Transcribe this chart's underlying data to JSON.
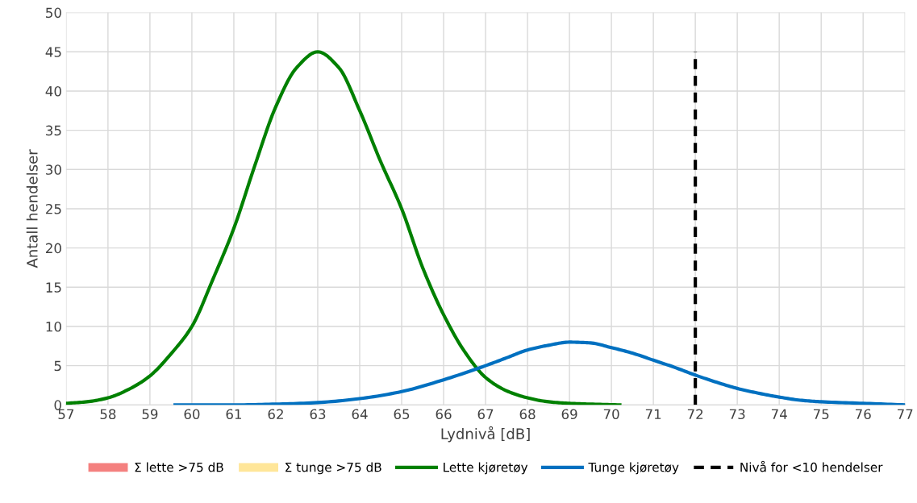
{
  "chart_data": {
    "type": "line",
    "xlabel": "Lydnivå [dB]",
    "ylabel": "Antall hendelser",
    "xlim": [
      57,
      77
    ],
    "xticks": [
      57,
      58,
      59,
      60,
      61,
      62,
      63,
      64,
      65,
      66,
      67,
      68,
      69,
      70,
      71,
      72,
      73,
      74,
      75,
      76,
      77
    ],
    "ylim": [
      0,
      50
    ],
    "yticks": [
      0,
      5,
      10,
      15,
      20,
      25,
      30,
      35,
      40,
      45,
      50
    ],
    "grid": true,
    "legend": "bottom",
    "marker": "none",
    "series": [
      {
        "name": "Σ lette >75 dB",
        "type": "area",
        "color": "#f4807f"
      },
      {
        "name": "Σ tunge >75 dB",
        "type": "area",
        "color": "#ffe699"
      },
      {
        "name": "Lette kjøretøy",
        "color": "#008000",
        "line_style": "solid",
        "x": [
          57,
          57.5,
          58,
          58.5,
          59,
          59.5,
          60,
          60.5,
          61,
          61.5,
          62,
          62.5,
          63,
          63.5,
          64,
          64.5,
          65,
          65.5,
          66,
          66.5,
          67,
          67.5,
          68,
          68.5,
          69,
          69.5,
          70.2
        ],
        "values": [
          0.2,
          0.4,
          0.9,
          2,
          3.7,
          6.5,
          10,
          16,
          22.5,
          30.5,
          38,
          43,
          45,
          43,
          37.5,
          31,
          25,
          17.5,
          11.5,
          6.8,
          3.5,
          1.8,
          0.9,
          0.4,
          0.2,
          0.1,
          0
        ]
      },
      {
        "name": "Tunge kjøretøy",
        "color": "#0070c0",
        "line_style": "solid",
        "x": [
          59.6,
          60,
          61,
          62,
          63,
          64,
          65,
          66,
          67,
          67.5,
          68,
          68.5,
          69,
          69.5,
          70,
          70.5,
          71,
          71.5,
          72,
          72.5,
          73,
          73.5,
          74,
          74.5,
          75,
          76,
          77
        ],
        "values": [
          0,
          0,
          0,
          0.1,
          0.3,
          0.8,
          1.7,
          3.2,
          5,
          6,
          7,
          7.6,
          8,
          7.9,
          7.3,
          6.6,
          5.7,
          4.8,
          3.8,
          2.9,
          2.1,
          1.5,
          1,
          0.6,
          0.4,
          0.2,
          0
        ]
      },
      {
        "name": "Nivå for <10 hendelser",
        "color": "#000000",
        "line_style": "dashed",
        "x": [
          72,
          72
        ],
        "values": [
          0,
          45
        ]
      }
    ]
  }
}
